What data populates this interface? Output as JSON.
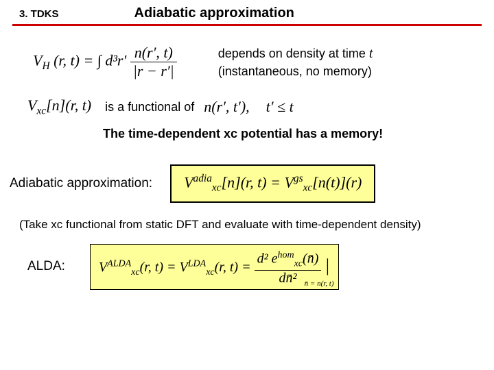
{
  "header": {
    "section": "3. TDKS",
    "title": "Adiabatic approximation"
  },
  "colors": {
    "rule": "#cc0000",
    "highlight_bg": "#ffff99",
    "highlight_border": "#000000"
  },
  "row1": {
    "eq_left": "V",
    "eq_sub": "H",
    "eq_args": "(r, t) =",
    "eq_int": "∫ d³r′",
    "eq_frac_num": "n(r′, t)",
    "eq_frac_den": "|r − r′|",
    "dep_line1_a": "depends on density at time ",
    "dep_line1_t": "t",
    "dep_line2": "(instantaneous, no memory)"
  },
  "row2": {
    "vxc": "V",
    "vxc_sub": "xc",
    "vxc_bracket": "[n](r, t)",
    "is_functional": "is a functional of",
    "n_expr": "n(r′, t′),",
    "tprime": "t′ ≤ t"
  },
  "memory_line": "The time-dependent xc potential has a memory!",
  "row3": {
    "label": "Adiabatic approximation:",
    "eq_lhs_v": "V",
    "eq_lhs_sup": "adia",
    "eq_lhs_sub": "xc",
    "eq_lhs_args": "[n](r, t) = ",
    "eq_rhs_v": "V",
    "eq_rhs_sup": "gs",
    "eq_rhs_sub": "xc",
    "eq_rhs_args": "[n(t)](r)"
  },
  "take_note": "(Take xc functional from static DFT and evaluate with time-dependent density)",
  "row4": {
    "label": "ALDA:",
    "lhs_v": "V",
    "lhs_sup": "ALDA",
    "lhs_sub": "xc",
    "lhs_args": "(r, t) = ",
    "mid_v": "V",
    "mid_sup": "LDA",
    "mid_sub": "xc",
    "mid_args": "(r, t) = ",
    "frac_num": "d² e",
    "frac_num_sup": "hom",
    "frac_num_sub": "xc",
    "frac_num_tail": "(n̄)",
    "frac_den": "dn̄²",
    "sub_note": "n̄ = n(r, t)"
  }
}
